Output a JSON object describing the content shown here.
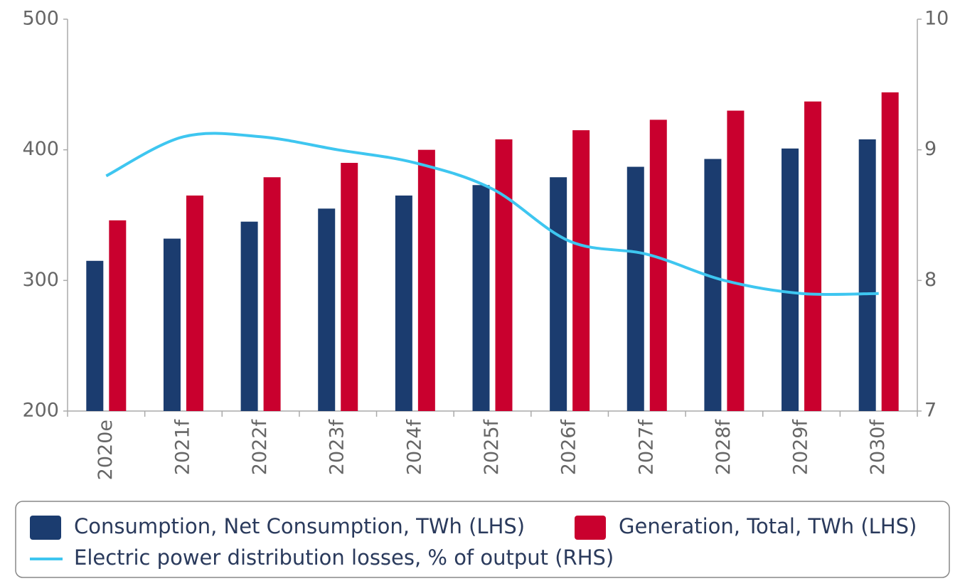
{
  "chart_data": {
    "type": "bar",
    "categories": [
      "2020e",
      "2021f",
      "2022f",
      "2023f",
      "2024f",
      "2025f",
      "2026f",
      "2027f",
      "2028f",
      "2029f",
      "2030f"
    ],
    "series": [
      {
        "name": "Consumption, Net Consumption, TWh (LHS)",
        "type": "bar",
        "color": "#1b3c6f",
        "values": [
          315,
          332,
          345,
          355,
          365,
          373,
          379,
          387,
          393,
          401,
          408
        ]
      },
      {
        "name": "Generation, Total, TWh (LHS)",
        "type": "bar",
        "color": "#c9002e",
        "values": [
          346,
          365,
          379,
          390,
          400,
          408,
          415,
          423,
          430,
          437,
          444
        ]
      },
      {
        "name": "Electric power distribution losses, % of output (RHS)",
        "type": "line",
        "axis": "y2",
        "color": "#3ec6f0",
        "values": [
          8.8,
          9.1,
          9.1,
          9.0,
          8.9,
          8.7,
          8.3,
          8.2,
          8.0,
          7.9,
          7.9
        ]
      }
    ],
    "ylim": [
      200,
      500
    ],
    "yticks": [
      200,
      300,
      400,
      500
    ],
    "y2lim": [
      7,
      10
    ],
    "y2ticks": [
      7,
      8,
      9,
      10
    ],
    "grid": false,
    "legend": "bottom"
  }
}
